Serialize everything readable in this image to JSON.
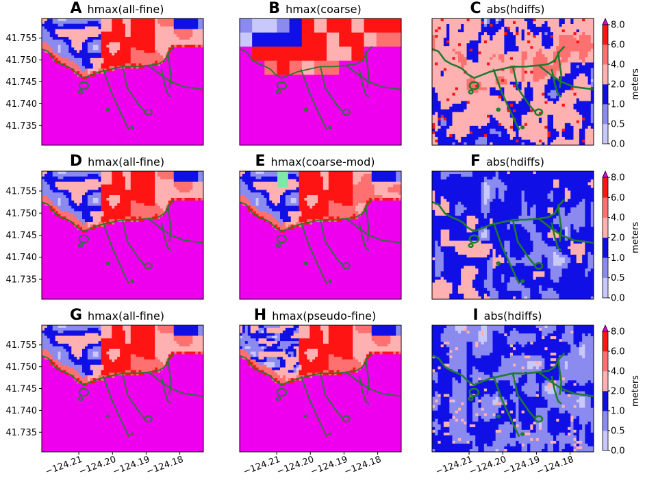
{
  "chart_data": {
    "type": "heatmap",
    "layout": "3x3 panel grid",
    "y_ticks": [
      "41.755",
      "41.750",
      "41.745",
      "41.740",
      "41.735"
    ],
    "y_tick_values": [
      41.755,
      41.75,
      41.745,
      41.74,
      41.735
    ],
    "x_ticks": [
      "−124.21",
      "−124.20",
      "−124.19",
      "−124.18"
    ],
    "x_tick_values": [
      -124.21,
      -124.2,
      -124.19,
      -124.18
    ],
    "xlim": [
      -124.221,
      -124.173
    ],
    "ylim": [
      41.7305,
      41.7595
    ],
    "colorbar": {
      "label": "meters",
      "ticks": [
        "0.0",
        "0.5",
        "1.0",
        "2.0",
        "4.0",
        "6.0",
        "8.0"
      ],
      "bins": [
        {
          "from": 0.0,
          "to": 0.5,
          "color": "#c8c8fa"
        },
        {
          "from": 0.5,
          "to": 1.0,
          "color": "#8a8aef"
        },
        {
          "from": 1.0,
          "to": 2.0,
          "color": "#1010e6"
        },
        {
          "from": 2.0,
          "to": 4.0,
          "color": "#ffb1b1"
        },
        {
          "from": 4.0,
          "to": 6.0,
          "color": "#ff7070"
        },
        {
          "from": 6.0,
          "to": 8.0,
          "color": "#ff1414"
        }
      ],
      "extend_max_color": "#e000e0",
      "extend": "max"
    },
    "panels": [
      {
        "letter": "A",
        "title": "hmax(all-fine)",
        "kind": "hmax",
        "variant": "fine"
      },
      {
        "letter": "B",
        "title": "hmax(coarse)",
        "kind": "hmax",
        "variant": "coarse"
      },
      {
        "letter": "C",
        "title": "abs(hdiffs)",
        "kind": "diff",
        "variant": "c"
      },
      {
        "letter": "D",
        "title": "hmax(all-fine)",
        "kind": "hmax",
        "variant": "fine"
      },
      {
        "letter": "E",
        "title": "hmax(coarse-mod)",
        "kind": "hmax",
        "variant": "mod"
      },
      {
        "letter": "F",
        "title": "abs(hdiffs)",
        "kind": "diff",
        "variant": "f"
      },
      {
        "letter": "G",
        "title": "hmax(all-fine)",
        "kind": "hmax",
        "variant": "fine"
      },
      {
        "letter": "H",
        "title": "hmax(pseudo-fine)",
        "kind": "hmax",
        "variant": "pseudo"
      },
      {
        "letter": "I",
        "title": "abs(hdiffs)",
        "kind": "diff",
        "variant": "i"
      }
    ],
    "colors": {
      "magenta": "#ee00ee",
      "coastline": "#1f7a2e"
    }
  }
}
